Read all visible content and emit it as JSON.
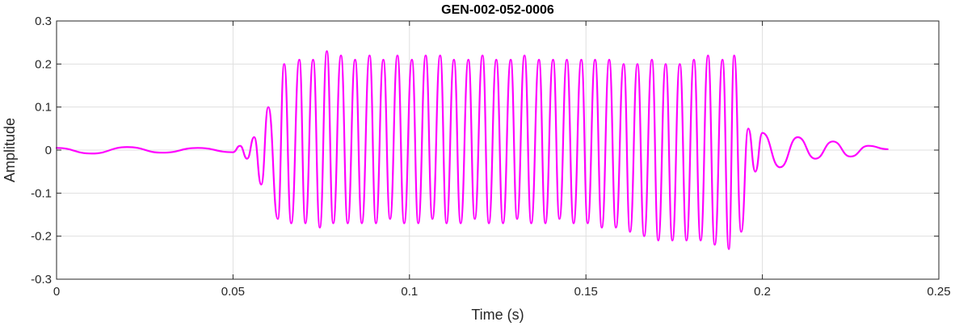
{
  "chart_data": {
    "type": "line",
    "title": "GEN-002-052-0006",
    "xlabel": "Time (s)",
    "ylabel": "Amplitude",
    "xlim": [
      0,
      0.25
    ],
    "ylim": [
      -0.3,
      0.3
    ],
    "x_ticks": [
      0,
      0.05,
      0.1,
      0.15,
      0.2,
      0.25
    ],
    "x_tick_labels": [
      "0",
      "0.05",
      "0.1",
      "0.15",
      "0.2",
      "0.25"
    ],
    "y_ticks": [
      -0.3,
      -0.2,
      -0.1,
      0,
      0.1,
      0.2,
      0.3
    ],
    "y_tick_labels": [
      "-0.3",
      "-0.2",
      "-0.1",
      "0",
      "0.1",
      "0.2",
      "0.3"
    ],
    "grid": true,
    "series": [
      {
        "color": "#ff00ff",
        "x": [
          0,
          0.01,
          0.02,
          0.03,
          0.04,
          0.05,
          0.052,
          0.054,
          0.056,
          0.058,
          0.06,
          0.0627,
          0.0645,
          0.0665,
          0.0688,
          0.0705,
          0.0727,
          0.0746,
          0.0766,
          0.0784,
          0.0806,
          0.0825,
          0.0846,
          0.0865,
          0.0887,
          0.0905,
          0.0926,
          0.0945,
          0.0966,
          0.0985,
          0.1007,
          0.1025,
          0.1046,
          0.1065,
          0.1087,
          0.1105,
          0.1126,
          0.1145,
          0.1167,
          0.1185,
          0.1207,
          0.1225,
          0.1246,
          0.1265,
          0.1287,
          0.1305,
          0.1326,
          0.1345,
          0.1367,
          0.1385,
          0.1407,
          0.1425,
          0.1446,
          0.1465,
          0.1487,
          0.1505,
          0.1526,
          0.1545,
          0.1566,
          0.1585,
          0.1607,
          0.1625,
          0.1646,
          0.1665,
          0.1687,
          0.1705,
          0.1726,
          0.1745,
          0.1766,
          0.1785,
          0.1806,
          0.1825,
          0.1846,
          0.1865,
          0.1887,
          0.1905,
          0.192,
          0.194,
          0.196,
          0.198,
          0.2,
          0.205,
          0.21,
          0.215,
          0.22,
          0.225,
          0.23,
          0.2355
        ],
        "y": [
          0.005,
          -0.008,
          0.007,
          -0.006,
          0.005,
          -0.005,
          0.01,
          -0.02,
          0.03,
          -0.08,
          0.1,
          -0.16,
          0.2,
          -0.17,
          0.21,
          -0.17,
          0.21,
          -0.18,
          0.23,
          -0.17,
          0.22,
          -0.17,
          0.21,
          -0.17,
          0.22,
          -0.17,
          0.21,
          -0.16,
          0.22,
          -0.17,
          0.21,
          -0.17,
          0.22,
          -0.16,
          0.22,
          -0.17,
          0.21,
          -0.17,
          0.21,
          -0.16,
          0.22,
          -0.17,
          0.21,
          -0.17,
          0.21,
          -0.16,
          0.22,
          -0.17,
          0.21,
          -0.17,
          0.21,
          -0.16,
          0.21,
          -0.17,
          0.21,
          -0.17,
          0.21,
          -0.18,
          0.21,
          -0.18,
          0.2,
          -0.19,
          0.2,
          -0.2,
          0.21,
          -0.21,
          0.2,
          -0.21,
          0.2,
          -0.21,
          0.21,
          -0.21,
          0.22,
          -0.22,
          0.21,
          -0.23,
          0.22,
          -0.19,
          0.05,
          -0.05,
          0.04,
          -0.04,
          0.03,
          -0.02,
          0.02,
          -0.015,
          0.01,
          0.002
        ]
      }
    ]
  }
}
